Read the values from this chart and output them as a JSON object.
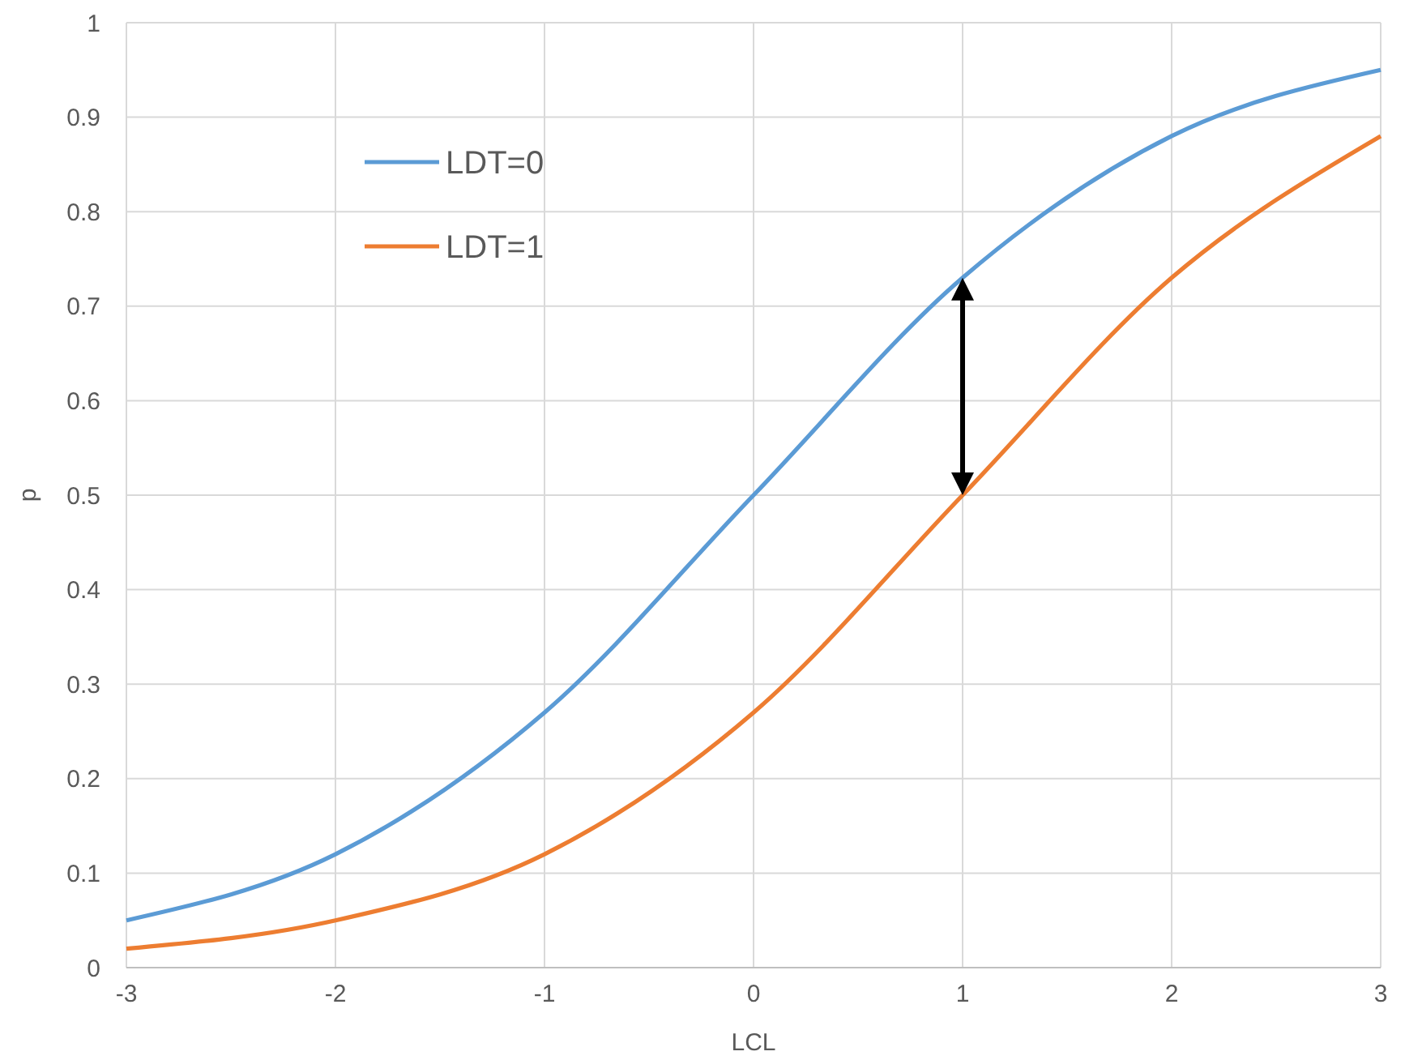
{
  "chart_data": {
    "type": "line",
    "xlabel": "LCL",
    "ylabel": "p",
    "x": [
      -3,
      -2,
      -1,
      0,
      1,
      2,
      3
    ],
    "series": [
      {
        "name": "LDT=0",
        "color": "#5b9bd5",
        "values": [
          0.05,
          0.12,
          0.27,
          0.5,
          0.73,
          0.88,
          0.95
        ]
      },
      {
        "name": "LDT=1",
        "color": "#ed7d31",
        "values": [
          0.02,
          0.05,
          0.12,
          0.27,
          0.5,
          0.73,
          0.88
        ]
      }
    ],
    "xlim": [
      -3,
      3
    ],
    "xticks": [
      -3,
      -2,
      -1,
      0,
      1,
      2,
      3
    ],
    "ylim": [
      0,
      1
    ],
    "yticks": [
      0,
      0.1,
      0.2,
      0.3,
      0.4,
      0.5,
      0.6,
      0.7,
      0.8,
      0.9,
      1
    ],
    "grid": true,
    "legend": "top left",
    "marker": "none",
    "line_style": "solid"
  }
}
